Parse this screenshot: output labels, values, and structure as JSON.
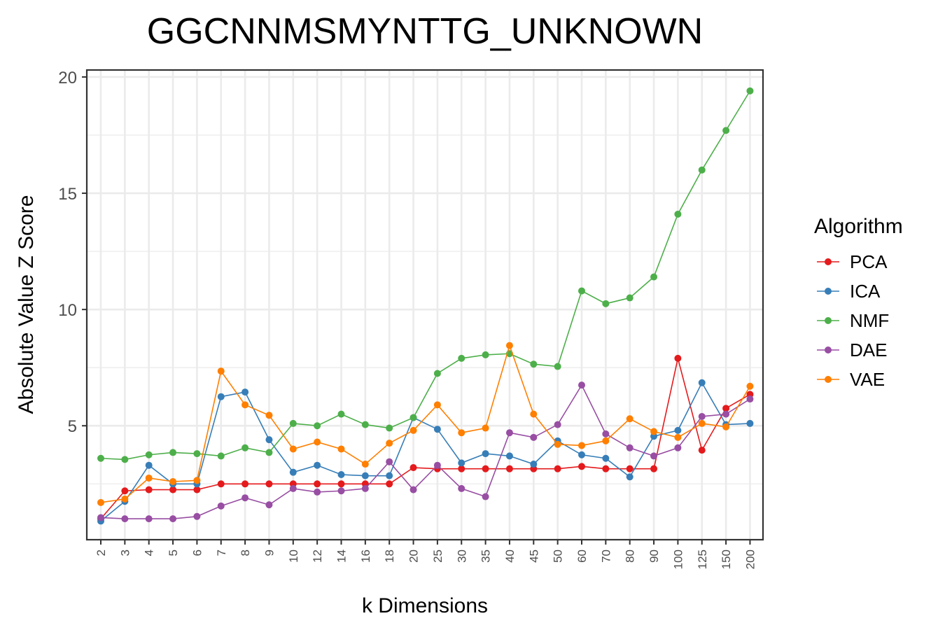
{
  "chart_data": {
    "type": "line",
    "title": "GGCNNMSMYNTTG_UNKNOWN",
    "xlabel": "k Dimensions",
    "ylabel": "Absolute Value Z Score",
    "categories": [
      "2",
      "3",
      "4",
      "5",
      "6",
      "7",
      "8",
      "9",
      "10",
      "12",
      "14",
      "16",
      "18",
      "20",
      "25",
      "30",
      "35",
      "40",
      "45",
      "50",
      "60",
      "70",
      "80",
      "90",
      "100",
      "125",
      "150",
      "200"
    ],
    "yticks": [
      "5",
      "10",
      "15",
      "20"
    ],
    "ylim": [
      0.1,
      20.3
    ],
    "grid": true,
    "legend": {
      "title": "Algorithm",
      "position": "right"
    },
    "series": [
      {
        "name": "PCA",
        "color": "#E41A1C",
        "values": [
          1.0,
          2.2,
          2.25,
          2.25,
          2.25,
          2.5,
          2.5,
          2.5,
          2.5,
          2.5,
          2.5,
          2.5,
          2.5,
          3.2,
          3.15,
          3.15,
          3.15,
          3.15,
          3.15,
          3.15,
          3.25,
          3.15,
          3.15,
          3.15,
          7.9,
          3.95,
          5.75,
          6.35
        ]
      },
      {
        "name": "ICA",
        "color": "#377EB8",
        "values": [
          0.9,
          1.75,
          3.3,
          2.5,
          2.5,
          6.25,
          6.45,
          4.4,
          3.0,
          3.3,
          2.9,
          2.85,
          2.85,
          5.35,
          4.85,
          3.4,
          3.8,
          3.7,
          3.35,
          4.35,
          3.75,
          3.6,
          2.8,
          4.55,
          4.8,
          6.85,
          5.05,
          5.1
        ]
      },
      {
        "name": "NMF",
        "color": "#4DAF4A",
        "values": [
          3.6,
          3.55,
          3.75,
          3.85,
          3.8,
          3.7,
          4.05,
          3.85,
          5.1,
          5.0,
          5.5,
          5.05,
          4.9,
          5.35,
          7.25,
          7.9,
          8.05,
          8.1,
          7.65,
          7.55,
          10.8,
          10.25,
          10.5,
          11.4,
          14.1,
          16.0,
          17.7,
          19.4
        ]
      },
      {
        "name": "DAE",
        "color": "#984EA3",
        "values": [
          1.05,
          1.0,
          1.0,
          1.0,
          1.1,
          1.55,
          1.9,
          1.6,
          2.3,
          2.15,
          2.2,
          2.3,
          3.45,
          2.25,
          3.3,
          2.3,
          1.95,
          4.7,
          4.5,
          5.05,
          6.75,
          4.65,
          4.05,
          3.7,
          4.05,
          5.4,
          5.5,
          6.15
        ]
      },
      {
        "name": "VAE",
        "color": "#FF7F00",
        "values": [
          1.7,
          1.85,
          2.75,
          2.6,
          2.65,
          7.35,
          5.9,
          5.45,
          4.0,
          4.3,
          4.0,
          3.35,
          4.25,
          4.8,
          5.9,
          4.7,
          4.9,
          8.45,
          5.5,
          4.2,
          4.15,
          4.35,
          5.3,
          4.75,
          4.5,
          5.1,
          4.95,
          6.7
        ]
      }
    ]
  }
}
